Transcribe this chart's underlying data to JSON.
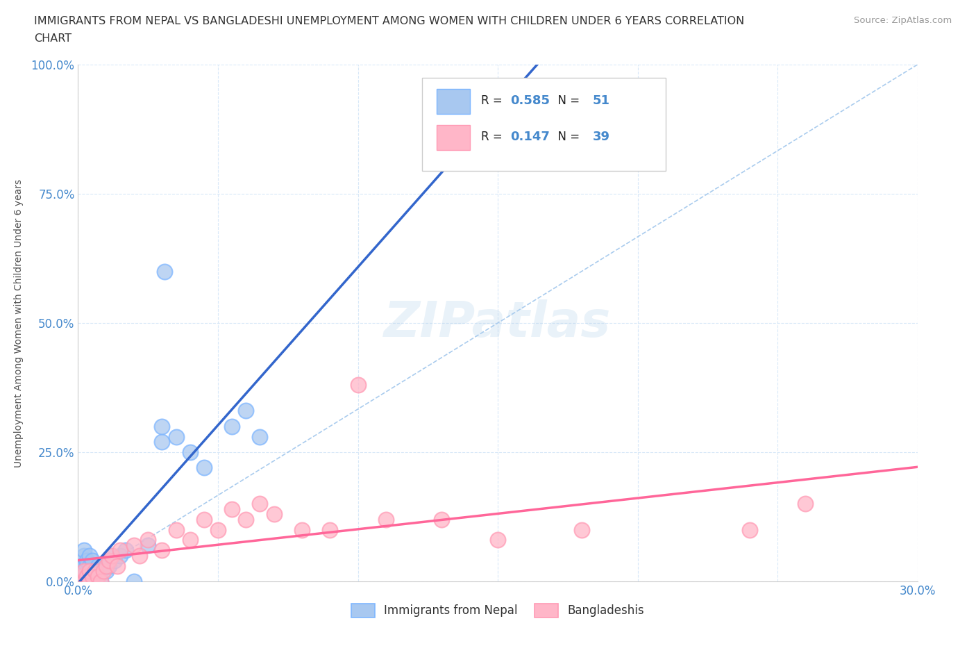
{
  "title_line1": "IMMIGRANTS FROM NEPAL VS BANGLADESHI UNEMPLOYMENT AMONG WOMEN WITH CHILDREN UNDER 6 YEARS CORRELATION",
  "title_line2": "CHART",
  "source": "Source: ZipAtlas.com",
  "ylabel": "Unemployment Among Women with Children Under 6 years",
  "xlim": [
    0.0,
    0.3
  ],
  "ylim": [
    0.0,
    1.0
  ],
  "xticks": [
    0.0,
    0.05,
    0.1,
    0.15,
    0.2,
    0.25,
    0.3
  ],
  "yticks": [
    0.0,
    0.25,
    0.5,
    0.75,
    1.0
  ],
  "nepal_color": "#A8C8F0",
  "nepal_edge_color": "#7EB6FF",
  "bangladesh_color": "#FFB6C8",
  "bangladesh_edge_color": "#FF9BB5",
  "trend_nepal_color": "#3366CC",
  "trend_bangladesh_color": "#FF6699",
  "nepal_R": 0.585,
  "nepal_N": 51,
  "bangladesh_R": 0.147,
  "bangladesh_N": 39,
  "background_color": "#FFFFFF",
  "grid_color": "#D8E8F8",
  "watermark": "ZIPatlas",
  "nepal_scatter_x": [
    0.001,
    0.001,
    0.001,
    0.001,
    0.001,
    0.002,
    0.002,
    0.002,
    0.002,
    0.002,
    0.002,
    0.002,
    0.003,
    0.003,
    0.003,
    0.003,
    0.003,
    0.003,
    0.004,
    0.004,
    0.004,
    0.004,
    0.004,
    0.005,
    0.005,
    0.005,
    0.005,
    0.006,
    0.006,
    0.007,
    0.007,
    0.008,
    0.008,
    0.009,
    0.01,
    0.011,
    0.012,
    0.013,
    0.015,
    0.017,
    0.02,
    0.025,
    0.03,
    0.03,
    0.035,
    0.04,
    0.045,
    0.055,
    0.06,
    0.065,
    0.031
  ],
  "nepal_scatter_y": [
    0.0,
    0.0,
    0.01,
    0.02,
    0.03,
    0.0,
    0.0,
    0.01,
    0.02,
    0.03,
    0.05,
    0.06,
    0.0,
    0.0,
    0.01,
    0.02,
    0.03,
    0.04,
    0.0,
    0.0,
    0.01,
    0.03,
    0.05,
    0.0,
    0.01,
    0.02,
    0.04,
    0.0,
    0.02,
    0.01,
    0.03,
    0.0,
    0.02,
    0.03,
    0.02,
    0.03,
    0.05,
    0.04,
    0.05,
    0.06,
    0.0,
    0.07,
    0.27,
    0.3,
    0.28,
    0.25,
    0.22,
    0.3,
    0.33,
    0.28,
    0.6
  ],
  "bangladesh_scatter_x": [
    0.001,
    0.001,
    0.002,
    0.002,
    0.003,
    0.003,
    0.004,
    0.004,
    0.005,
    0.006,
    0.007,
    0.008,
    0.009,
    0.01,
    0.011,
    0.012,
    0.014,
    0.015,
    0.02,
    0.022,
    0.025,
    0.03,
    0.035,
    0.04,
    0.045,
    0.05,
    0.055,
    0.06,
    0.065,
    0.07,
    0.08,
    0.09,
    0.1,
    0.11,
    0.13,
    0.15,
    0.18,
    0.24,
    0.26
  ],
  "bangladesh_scatter_y": [
    0.0,
    0.01,
    0.0,
    0.02,
    0.0,
    0.01,
    0.0,
    0.02,
    0.01,
    0.02,
    0.01,
    0.0,
    0.02,
    0.03,
    0.04,
    0.05,
    0.03,
    0.06,
    0.07,
    0.05,
    0.08,
    0.06,
    0.1,
    0.08,
    0.12,
    0.1,
    0.14,
    0.12,
    0.15,
    0.13,
    0.1,
    0.1,
    0.38,
    0.12,
    0.12,
    0.08,
    0.1,
    0.1,
    0.15
  ]
}
